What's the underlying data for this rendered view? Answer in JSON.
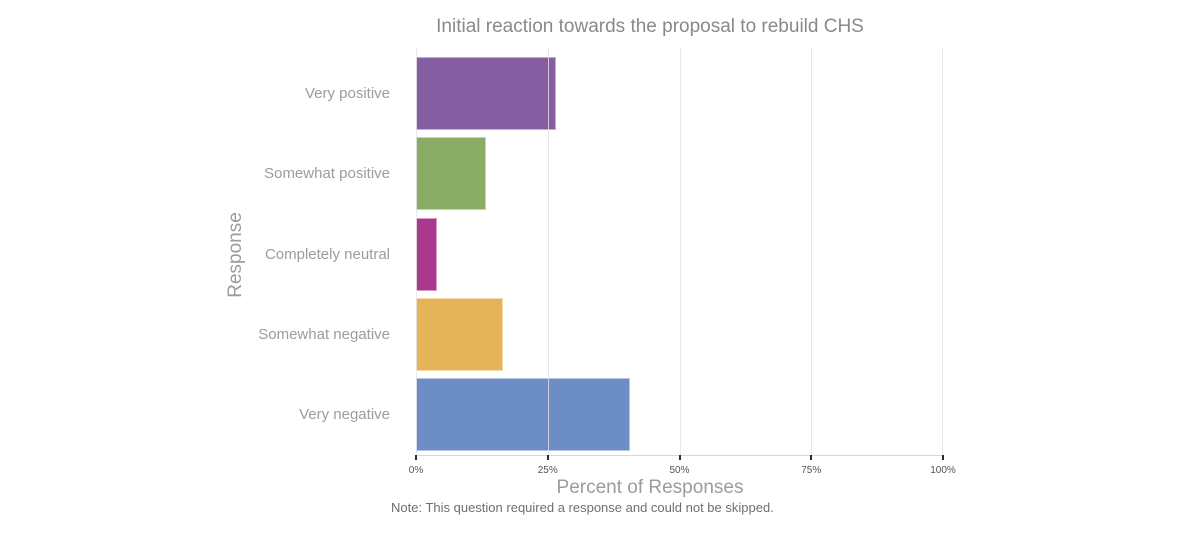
{
  "figure": {
    "title": "Initial reaction towards the proposal to rebuild CHS",
    "y_axis_title": "Response",
    "x_axis_title": "Percent of Responses",
    "note": "Note: This question required a response and could not be skipped."
  },
  "chart_data": {
    "type": "bar",
    "orientation": "horizontal",
    "title": "Initial reaction towards the proposal to rebuild CHS",
    "categories": [
      "Very positive",
      "Somewhat positive",
      "Completely neutral",
      "Somewhat negative",
      "Very negative"
    ],
    "values": [
      26.6,
      13.3,
      4.0,
      16.5,
      40.6
    ],
    "unit": "percent",
    "bar_colors": [
      "#855EA1",
      "#8AAC64",
      "#AA388C",
      "#E5B45A",
      "#6C8DC6"
    ],
    "xlabel": "Percent of Responses",
    "ylabel": "Response",
    "xlim": [
      0,
      100
    ],
    "xtick_values": [
      0,
      25,
      50,
      75,
      100
    ],
    "xtick_labels": [
      "0%",
      "25%",
      "50%",
      "75%",
      "100%"
    ],
    "grid": "vertical-only",
    "legend": "none",
    "note": "Note: This question required a response and could not be skipped."
  },
  "style": {
    "background": "#FFFFFF",
    "title_color": "#87898C",
    "axis_title_color": "#9C9C9C",
    "category_label_color": "#9C9C9C",
    "tick_label_color": "#545454",
    "note_color": "#6F6F6F",
    "gridline_color": "#E7E7E7",
    "axis_line_color": "#D8D8D8",
    "tick_mark_color": "#2B2B2B"
  }
}
